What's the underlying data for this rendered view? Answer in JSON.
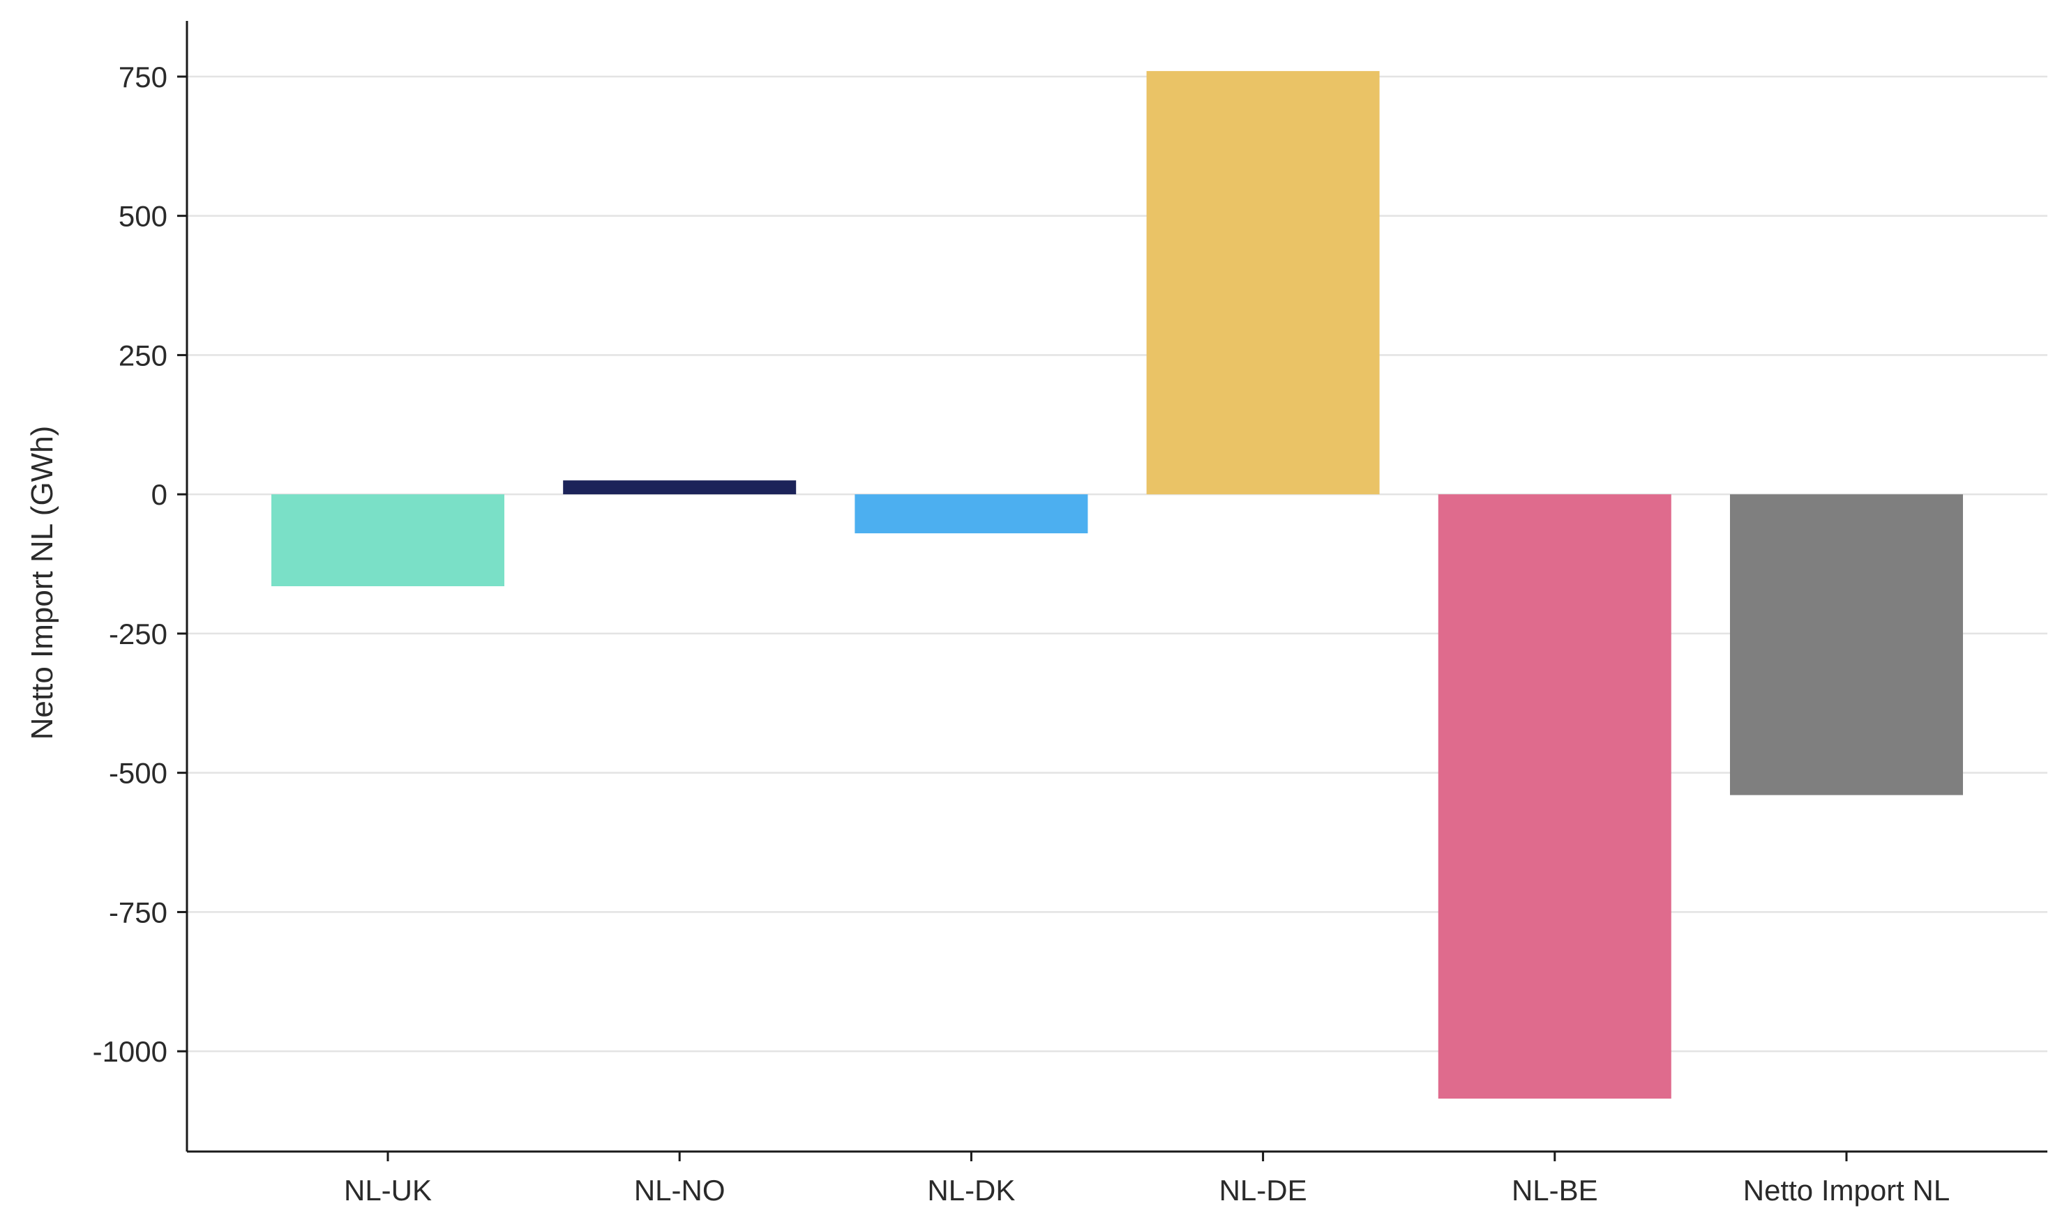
{
  "chart_data": {
    "type": "bar",
    "title": "",
    "xlabel": "",
    "ylabel": "Netto Import NL (GWh)",
    "categories": [
      "NL-UK",
      "NL-NO",
      "NL-DK",
      "NL-DE",
      "NL-BE",
      "Netto Import NL"
    ],
    "values": [
      -165,
      25,
      -70,
      760,
      -1085,
      -540
    ],
    "colors": [
      "#7ae0c7",
      "#1c2359",
      "#4caff0",
      "#eac366",
      "#df6b8d",
      "#7f7f7f"
    ],
    "ylim": [
      -1180,
      850
    ],
    "yticks": [
      750,
      500,
      250,
      0,
      -250,
      -500,
      -750,
      -1000
    ],
    "ytick_labels": [
      "750",
      "500",
      "250",
      "0",
      "-250",
      "-500",
      "-750",
      "-1000"
    ],
    "grid": "horizontal",
    "legend": "none"
  }
}
